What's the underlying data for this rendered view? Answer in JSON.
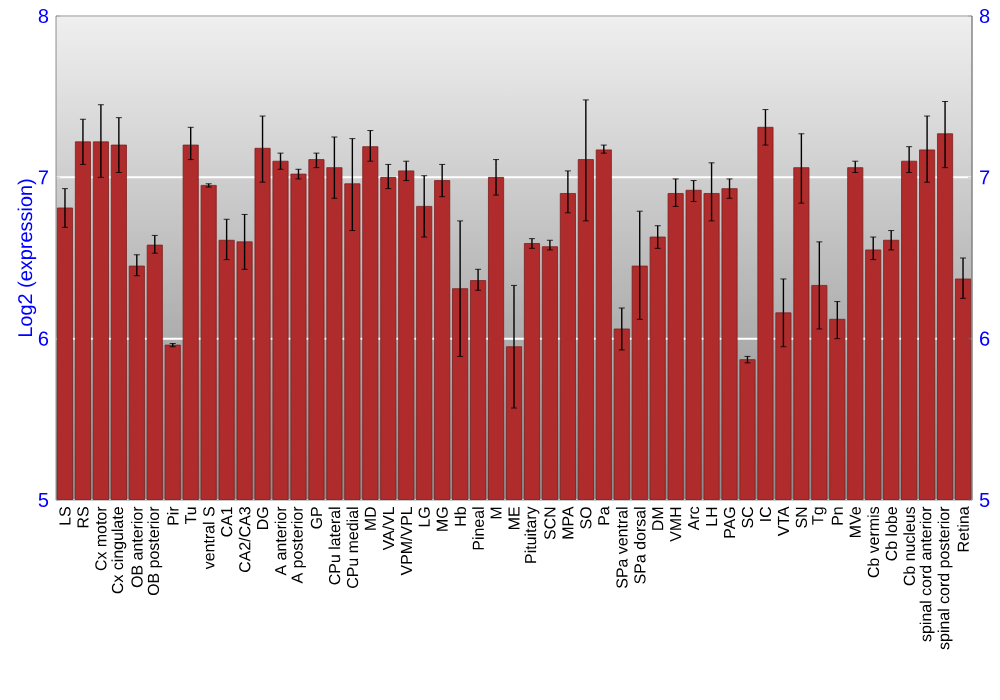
{
  "chart_data": {
    "type": "bar",
    "ylabel": "Log2 (expression)",
    "color": "#b02c2c",
    "categories": [
      "LS",
      "RS",
      "Cx motor",
      "Cx cingulate",
      "OB anterior",
      "OB posterior",
      "Pir",
      "Tu",
      "ventral S",
      "CA1",
      "CA2/CA3",
      "DG",
      "A anterior",
      "A posterior",
      "GP",
      "CPu lateral",
      "CPu medial",
      "MD",
      "VA/VL",
      "VPM/VPL",
      "LG",
      "MG",
      "Hb",
      "Pineal",
      "M",
      "ME",
      "Pituitary",
      "SCN",
      "MPA",
      "SO",
      "Pa",
      "SPa ventral",
      "SPa dorsal",
      "DM",
      "VMH",
      "Arc",
      "LH",
      "PAG",
      "SC",
      "IC",
      "VTA",
      "SN",
      "Tg",
      "Pn",
      "MVe",
      "Cb vermis",
      "Cb lobe",
      "Cb nucleus",
      "spinal cord anterior",
      "spinal cord posterior",
      "Retina"
    ],
    "values": [
      6.81,
      7.22,
      7.22,
      7.2,
      6.45,
      6.58,
      5.96,
      7.2,
      6.95,
      6.61,
      6.6,
      7.18,
      7.1,
      7.02,
      7.11,
      7.06,
      6.96,
      7.19,
      7.0,
      7.04,
      6.82,
      6.98,
      6.31,
      6.36,
      7.0,
      5.95,
      6.59,
      6.57,
      6.9,
      7.11,
      7.17,
      6.06,
      6.45,
      6.63,
      6.9,
      6.92,
      6.9,
      6.93,
      5.87,
      7.31,
      6.16,
      7.06,
      6.33,
      6.12,
      7.06,
      6.55,
      6.61,
      7.1,
      7.17,
      7.27,
      6.37
    ],
    "errors": [
      [
        6.69,
        6.93
      ],
      [
        7.08,
        7.36
      ],
      [
        7.0,
        7.45
      ],
      [
        7.03,
        7.37
      ],
      [
        6.39,
        6.52
      ],
      [
        6.53,
        6.64
      ],
      [
        5.95,
        5.97
      ],
      [
        7.11,
        7.31
      ],
      [
        6.94,
        6.96
      ],
      [
        6.49,
        6.74
      ],
      [
        6.43,
        6.77
      ],
      [
        6.97,
        7.38
      ],
      [
        7.05,
        7.15
      ],
      [
        6.99,
        7.05
      ],
      [
        7.06,
        7.15
      ],
      [
        6.87,
        7.25
      ],
      [
        6.67,
        7.24
      ],
      [
        7.1,
        7.29
      ],
      [
        6.93,
        7.08
      ],
      [
        6.98,
        7.1
      ],
      [
        6.63,
        7.01
      ],
      [
        6.88,
        7.08
      ],
      [
        5.89,
        6.73
      ],
      [
        6.3,
        6.43
      ],
      [
        6.89,
        7.11
      ],
      [
        5.57,
        6.33
      ],
      [
        6.56,
        6.62
      ],
      [
        6.55,
        6.61
      ],
      [
        6.78,
        7.04
      ],
      [
        6.73,
        7.48
      ],
      [
        7.15,
        7.2
      ],
      [
        5.93,
        6.19
      ],
      [
        6.12,
        6.79
      ],
      [
        6.56,
        6.7
      ],
      [
        6.82,
        6.99
      ],
      [
        6.85,
        6.98
      ],
      [
        6.73,
        7.09
      ],
      [
        6.87,
        6.99
      ],
      [
        5.85,
        5.89
      ],
      [
        7.2,
        7.42
      ],
      [
        5.95,
        6.37
      ],
      [
        6.84,
        7.27
      ],
      [
        6.06,
        6.6
      ],
      [
        6.0,
        6.23
      ],
      [
        7.03,
        7.1
      ],
      [
        6.49,
        6.63
      ],
      [
        6.55,
        6.67
      ],
      [
        7.03,
        7.19
      ],
      [
        6.97,
        7.38
      ],
      [
        7.06,
        7.47
      ],
      [
        6.25,
        6.5
      ]
    ],
    "ylim": [
      5,
      8
    ],
    "yticks": [
      5,
      6,
      7,
      8
    ],
    "y2lim": [
      5,
      8
    ],
    "y2ticks": [
      5,
      6,
      7,
      8
    ],
    "grid": "y"
  }
}
